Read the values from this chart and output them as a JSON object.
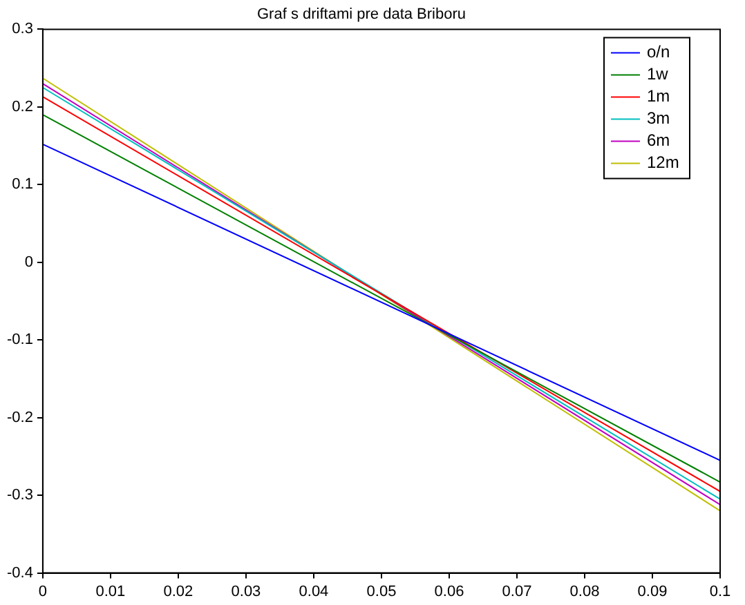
{
  "chart_data": {
    "type": "line",
    "title": "Graf s driftami pre data Briboru",
    "x": [
      0,
      0.1
    ],
    "series": [
      {
        "name": "o/n",
        "color": "#0000ff",
        "values": [
          0.152,
          -0.255
        ]
      },
      {
        "name": "1w",
        "color": "#008000",
        "values": [
          0.19,
          -0.283
        ]
      },
      {
        "name": "1m",
        "color": "#ff0000",
        "values": [
          0.213,
          -0.295
        ]
      },
      {
        "name": "3m",
        "color": "#00bfbf",
        "values": [
          0.225,
          -0.305
        ]
      },
      {
        "name": "6m",
        "color": "#bf00bf",
        "values": [
          0.23,
          -0.312
        ]
      },
      {
        "name": "12m",
        "color": "#bfbf00",
        "values": [
          0.237,
          -0.32
        ]
      }
    ],
    "xlim": [
      0,
      0.1
    ],
    "xticks": [
      0,
      0.01,
      0.02,
      0.03,
      0.04,
      0.05,
      0.06,
      0.07,
      0.08,
      0.09,
      0.1
    ],
    "ylim": [
      -0.4,
      0.3
    ],
    "yticks": [
      -0.4,
      -0.3,
      -0.2,
      -0.1,
      0,
      0.1,
      0.2,
      0.3
    ],
    "grid": false,
    "legend": "top right",
    "marker": "none",
    "line_style": "solid"
  }
}
